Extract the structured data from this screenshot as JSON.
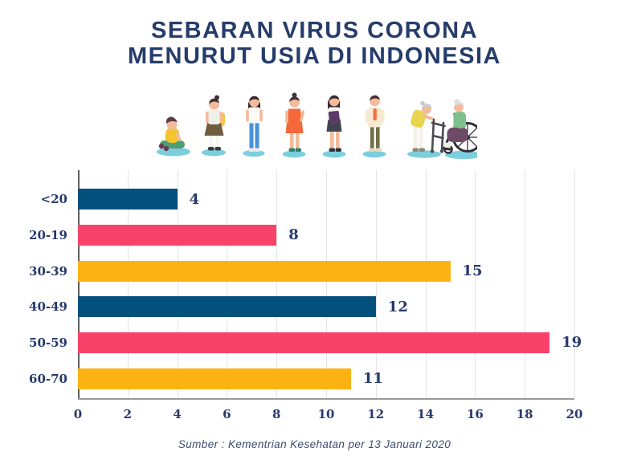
{
  "title": {
    "line1": "SEBARAN VIRUS CORONA",
    "line2": "MENURUT USIA DI INDONESIA"
  },
  "illustration": {
    "description": "age-progression of eight female figures from toddler to elderly woman in wheelchair",
    "figures": [
      "toddler-sitting",
      "schoolgirl-with-backpack",
      "teen-in-jeans",
      "woman-orange-dress",
      "woman-with-folder",
      "woman-in-jacket",
      "elderly-with-walker",
      "elderly-in-wheelchair"
    ]
  },
  "chart_data": {
    "type": "bar",
    "orientation": "horizontal",
    "title": "Sebaran virus corona menurut usia di Indonesia",
    "categories": [
      "<20",
      "20-19",
      "30-39",
      "40-49",
      "50-59",
      "60-70"
    ],
    "values": [
      4,
      8,
      15,
      12,
      19,
      11
    ],
    "bar_colors": [
      "#05517e",
      "#f94269",
      "#fcb213",
      "#05517e",
      "#f94269",
      "#fcb213"
    ],
    "xlim": [
      0,
      20
    ],
    "x_ticks": [
      0,
      2,
      4,
      6,
      8,
      10,
      12,
      14,
      16,
      18,
      20
    ],
    "grid": "vertical-light-gray",
    "value_labels_shown": true,
    "legend": "none"
  },
  "footer": {
    "source": "Sumber : Kementrian Kesehatan per 13 Januari 2020"
  },
  "colors": {
    "title_navy": "#263c6a",
    "bar_navy": "#05517e",
    "bar_pink": "#f94269",
    "bar_yellow": "#fcb213",
    "gridline": "#e4e4e4",
    "axis": "#9a9a9a",
    "shadow_teal": "#7ccedd"
  }
}
